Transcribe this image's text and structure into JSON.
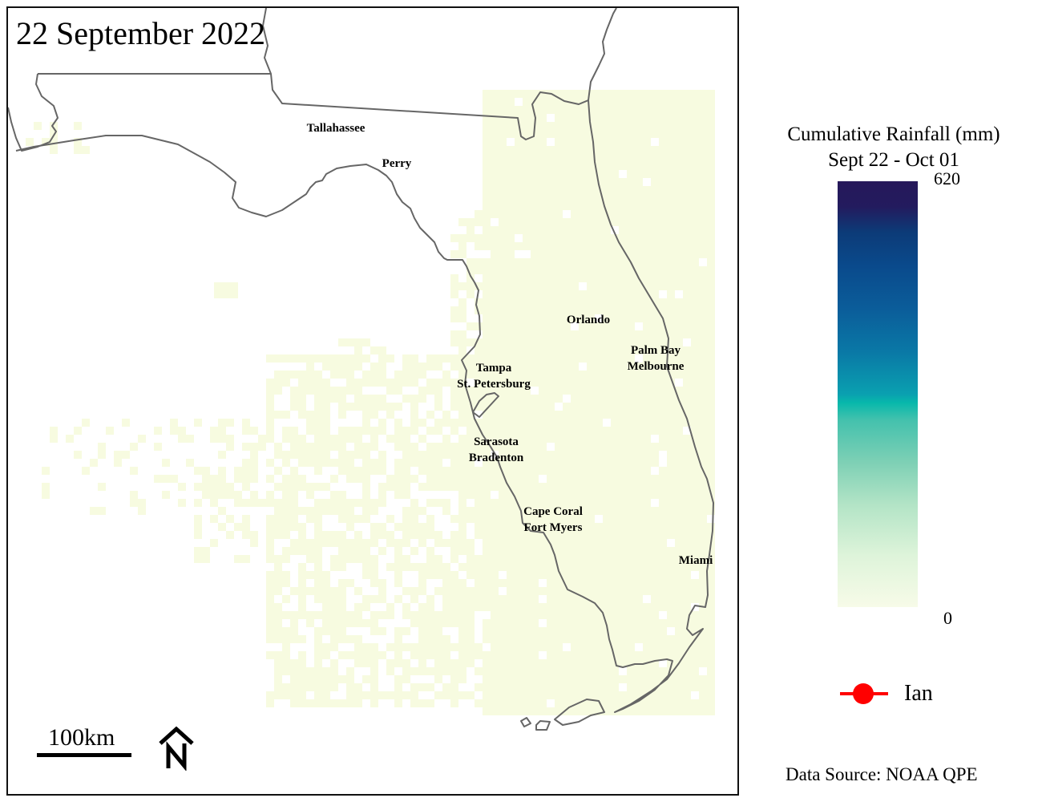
{
  "map": {
    "date_title": "22 September 2022",
    "scale_label": "100km",
    "north_arrow_icon": "north-arrow-icon",
    "colors": {
      "rain_light": "#f7fbe0",
      "state_line": "#666666",
      "storm_track": "#ff0000"
    },
    "cities": [
      {
        "line1": "Tallahassee",
        "line2": ""
      },
      {
        "line1": "Perry",
        "line2": ""
      },
      {
        "line1": "Orlando",
        "line2": ""
      },
      {
        "line1": "Palm Bay",
        "line2": "Melbourne"
      },
      {
        "line1": "Tampa",
        "line2": "St. Petersburg"
      },
      {
        "line1": "Sarasota",
        "line2": "Bradenton"
      },
      {
        "line1": "Cape Coral",
        "line2": "Fort Myers"
      },
      {
        "line1": "Miami",
        "line2": ""
      }
    ]
  },
  "legend": {
    "title_line1": "Cumulative Rainfall (mm)",
    "title_line2": "Sept 22 - Oct 01",
    "max_label": "620",
    "min_label": "0",
    "storm_label": "Ian",
    "storm_icon": "storm-track-marker-icon"
  },
  "source": "Data Source: NOAA QPE"
}
